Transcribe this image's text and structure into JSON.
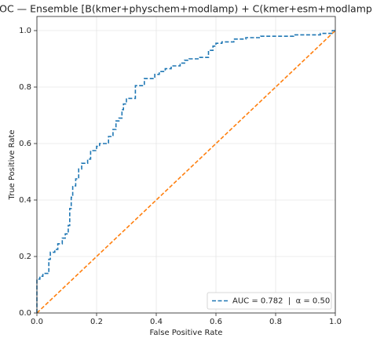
{
  "chart_data": {
    "type": "line",
    "title": "ROC — Ensemble [B(kmer+physchem+modlamp) + C(kmer+esm+modlamp)]",
    "x_label": "False Positive Rate",
    "y_label": "True Positive Rate",
    "xlim": [
      0,
      1
    ],
    "ylim": [
      0,
      1.05
    ],
    "xticks": [
      {
        "value": 0,
        "label": "0.0"
      },
      {
        "value": 0.2,
        "label": "0.2"
      },
      {
        "value": 0.4,
        "label": "0.4"
      },
      {
        "value": 0.6,
        "label": "0.6"
      },
      {
        "value": 0.8,
        "label": "0.8"
      },
      {
        "value": 1,
        "label": "1.0"
      }
    ],
    "yticks": [
      {
        "value": 0,
        "label": "0.0"
      },
      {
        "value": 0.2,
        "label": "0.2"
      },
      {
        "value": 0.4,
        "label": "0.4"
      },
      {
        "value": 0.6,
        "label": "0.6"
      },
      {
        "value": 0.8,
        "label": "0.8"
      },
      {
        "value": 1,
        "label": "1.0"
      }
    ],
    "grid": true,
    "legend": "lower right",
    "series": [
      {
        "name": "AUC = 0.782  |  α = 0.50",
        "color": "#1f77b4",
        "linestyle": "dashed",
        "x": [
          0,
          0,
          0.01,
          0.01,
          0.02,
          0.02,
          0.04,
          0.04,
          0.045,
          0.045,
          0.06,
          0.06,
          0.07,
          0.07,
          0.085,
          0.085,
          0.095,
          0.095,
          0.105,
          0.105,
          0.11,
          0.11,
          0.115,
          0.115,
          0.12,
          0.12,
          0.13,
          0.13,
          0.14,
          0.14,
          0.15,
          0.15,
          0.17,
          0.17,
          0.18,
          0.18,
          0.2,
          0.2,
          0.21,
          0.21,
          0.24,
          0.24,
          0.255,
          0.255,
          0.265,
          0.265,
          0.275,
          0.275,
          0.285,
          0.285,
          0.29,
          0.29,
          0.3,
          0.3,
          0.33,
          0.33,
          0.36,
          0.36,
          0.395,
          0.395,
          0.41,
          0.41,
          0.43,
          0.43,
          0.45,
          0.45,
          0.48,
          0.48,
          0.495,
          0.495,
          0.51,
          0.51,
          0.54,
          0.54,
          0.575,
          0.575,
          0.59,
          0.59,
          0.6,
          0.6,
          0.62,
          0.62,
          0.66,
          0.66,
          0.7,
          0.7,
          0.75,
          0.75,
          0.86,
          0.86,
          0.95,
          0.95,
          0.99,
          0.99,
          1
        ],
        "y": [
          0,
          0.12,
          0.12,
          0.13,
          0.13,
          0.14,
          0.14,
          0.19,
          0.19,
          0.215,
          0.215,
          0.225,
          0.225,
          0.245,
          0.245,
          0.265,
          0.265,
          0.28,
          0.28,
          0.31,
          0.31,
          0.37,
          0.37,
          0.41,
          0.41,
          0.45,
          0.45,
          0.475,
          0.475,
          0.51,
          0.51,
          0.53,
          0.53,
          0.545,
          0.545,
          0.575,
          0.575,
          0.59,
          0.59,
          0.6,
          0.6,
          0.625,
          0.625,
          0.65,
          0.65,
          0.68,
          0.68,
          0.69,
          0.69,
          0.72,
          0.72,
          0.74,
          0.74,
          0.76,
          0.76,
          0.805,
          0.805,
          0.83,
          0.83,
          0.845,
          0.845,
          0.855,
          0.855,
          0.865,
          0.865,
          0.875,
          0.875,
          0.885,
          0.885,
          0.895,
          0.895,
          0.9,
          0.9,
          0.905,
          0.905,
          0.93,
          0.93,
          0.945,
          0.945,
          0.955,
          0.955,
          0.96,
          0.96,
          0.97,
          0.97,
          0.975,
          0.975,
          0.98,
          0.98,
          0.985,
          0.985,
          0.99,
          0.99,
          1,
          1
        ]
      },
      {
        "color": "#ff7f0e",
        "linestyle": "dashed",
        "x": [
          0,
          1
        ],
        "y": [
          0,
          1
        ]
      }
    ]
  }
}
